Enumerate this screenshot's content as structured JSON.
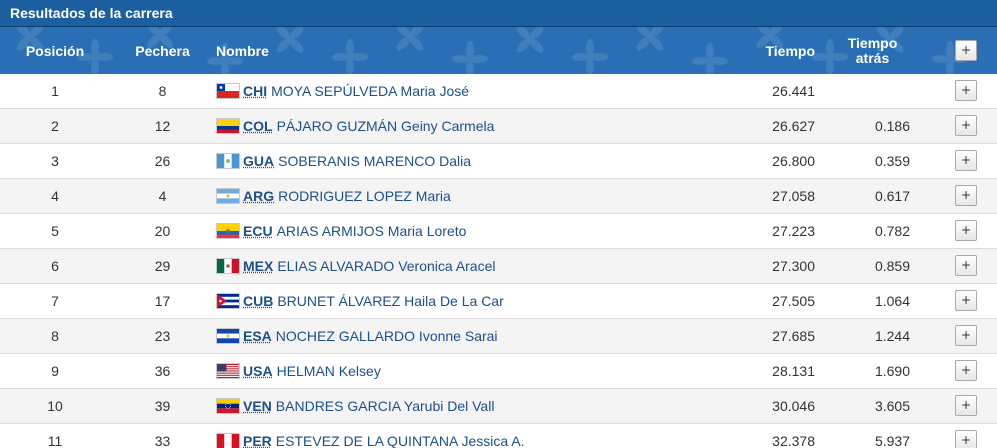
{
  "panel": {
    "title": "Resultados de la carrera"
  },
  "header": {
    "position": "Posición",
    "bib": "Pechera",
    "name": "Nombre",
    "time": "Tiempo",
    "behind_line1": "Tiempo",
    "behind_line2": "atrás",
    "expand_label": "+"
  },
  "rows": [
    {
      "position": "1",
      "bib": "8",
      "country": "CHI",
      "athlete": "MOYA SEPÚLVEDA Maria José",
      "time": "26.441",
      "behind": "",
      "flag": "chile",
      "expand": "+"
    },
    {
      "position": "2",
      "bib": "12",
      "country": "COL",
      "athlete": "PÁJARO GUZMÁN Geiny Carmela",
      "time": "26.627",
      "behind": "0.186",
      "flag": "colombia",
      "expand": "+"
    },
    {
      "position": "3",
      "bib": "26",
      "country": "GUA",
      "athlete": "SOBERANIS MARENCO Dalia",
      "time": "26.800",
      "behind": "0.359",
      "flag": "guatemala",
      "expand": "+"
    },
    {
      "position": "4",
      "bib": "4",
      "country": "ARG",
      "athlete": "RODRIGUEZ LOPEZ Maria",
      "time": "27.058",
      "behind": "0.617",
      "flag": "argentina",
      "expand": "+"
    },
    {
      "position": "5",
      "bib": "20",
      "country": "ECU",
      "athlete": "ARIAS ARMIJOS Maria Loreto",
      "time": "27.223",
      "behind": "0.782",
      "flag": "ecuador",
      "expand": "+"
    },
    {
      "position": "6",
      "bib": "29",
      "country": "MEX",
      "athlete": "ELIAS ALVARADO Veronica Aracel",
      "time": "27.300",
      "behind": "0.859",
      "flag": "mexico",
      "expand": "+"
    },
    {
      "position": "7",
      "bib": "17",
      "country": "CUB",
      "athlete": "BRUNET ÁLVAREZ Haila De La Car",
      "time": "27.505",
      "behind": "1.064",
      "flag": "cuba",
      "expand": "+"
    },
    {
      "position": "8",
      "bib": "23",
      "country": "ESA",
      "athlete": "NOCHEZ GALLARDO Ivonne Sarai",
      "time": "27.685",
      "behind": "1.244",
      "flag": "elsalvador",
      "expand": "+"
    },
    {
      "position": "9",
      "bib": "36",
      "country": "USA",
      "athlete": "HELMAN Kelsey",
      "time": "28.131",
      "behind": "1.690",
      "flag": "usa",
      "expand": "+"
    },
    {
      "position": "10",
      "bib": "39",
      "country": "VEN",
      "athlete": "BANDRES GARCIA Yarubi Del Vall",
      "time": "30.046",
      "behind": "3.605",
      "flag": "venezuela",
      "expand": "+"
    },
    {
      "position": "11",
      "bib": "33",
      "country": "PER",
      "athlete": "ESTEVEZ DE LA QUINTANA Jessica A.",
      "time": "32.378",
      "behind": "5.937",
      "flag": "peru",
      "expand": "+"
    }
  ],
  "colors": {
    "title_bg": "#1c5fa0",
    "header_bg": "#2a6fb5",
    "link": "#1c4f8c",
    "alt_row": "#f4f4f4"
  }
}
